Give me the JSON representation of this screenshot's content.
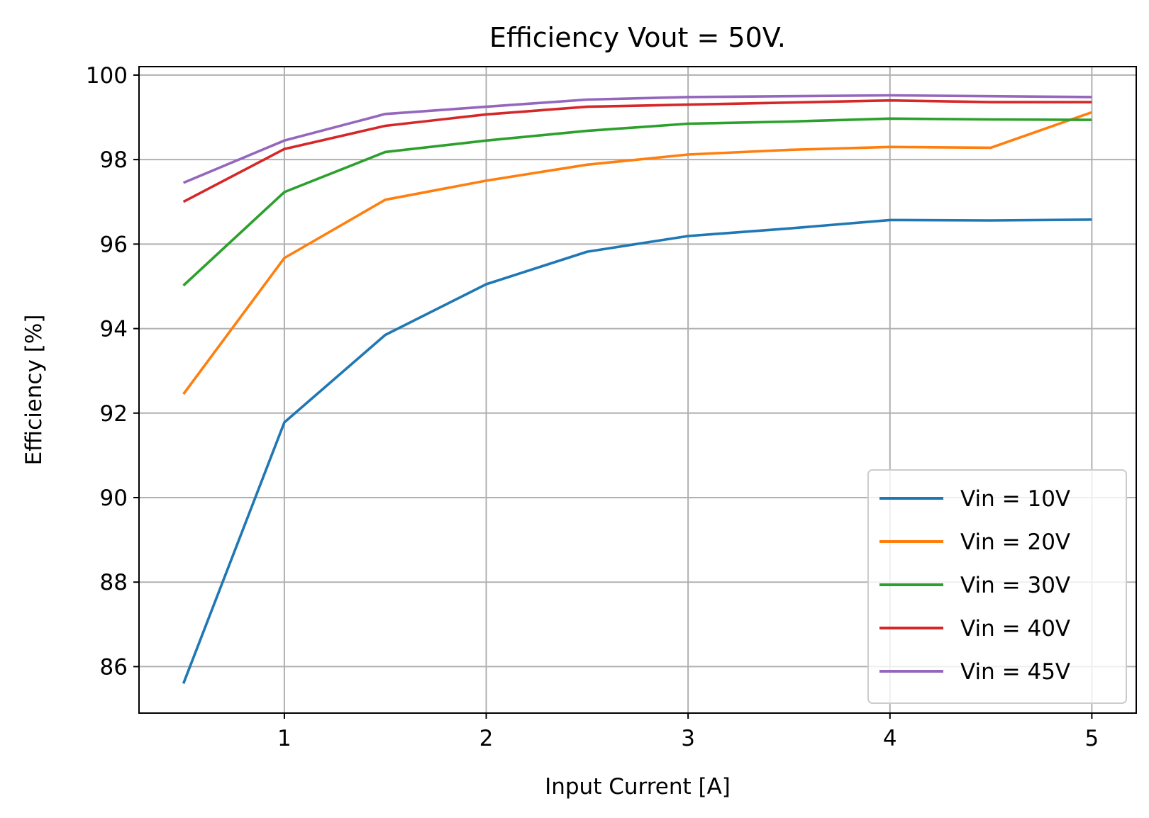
{
  "chart_data": {
    "type": "line",
    "title": "Efficiency Vout = 50V.",
    "xlabel": "Input Current [A]",
    "ylabel": "Efficiency [%]",
    "xlim": [
      0.28,
      5.22
    ],
    "ylim": [
      84.9,
      100.2
    ],
    "xticks": [
      1,
      2,
      3,
      4,
      5
    ],
    "yticks": [
      86,
      88,
      90,
      92,
      94,
      96,
      98,
      100
    ],
    "grid": true,
    "legend_position": "lower-right",
    "x": [
      0.5,
      1.0,
      1.5,
      2.0,
      2.5,
      3.0,
      3.5,
      4.0,
      4.5,
      5.0
    ],
    "series": [
      {
        "name": "Vin = 10V",
        "color": "#1f77b4",
        "values": [
          85.6,
          91.78,
          93.85,
          95.05,
          95.82,
          96.19,
          96.37,
          96.57,
          96.56,
          96.58
        ]
      },
      {
        "name": "Vin = 20V",
        "color": "#ff7f0e",
        "values": [
          92.45,
          95.67,
          97.05,
          97.5,
          97.88,
          98.12,
          98.23,
          98.3,
          98.28,
          99.12
        ]
      },
      {
        "name": "Vin = 30V",
        "color": "#2ca02c",
        "values": [
          95.02,
          97.23,
          98.18,
          98.45,
          98.68,
          98.85,
          98.9,
          98.97,
          98.95,
          98.94
        ]
      },
      {
        "name": "Vin = 40V",
        "color": "#d62728",
        "values": [
          97.0,
          98.25,
          98.8,
          99.07,
          99.25,
          99.3,
          99.35,
          99.4,
          99.36,
          99.36
        ]
      },
      {
        "name": "Vin = 45V",
        "color": "#9467bd",
        "values": [
          97.45,
          98.45,
          99.08,
          99.25,
          99.42,
          99.48,
          99.5,
          99.52,
          99.5,
          99.48
        ]
      }
    ]
  }
}
